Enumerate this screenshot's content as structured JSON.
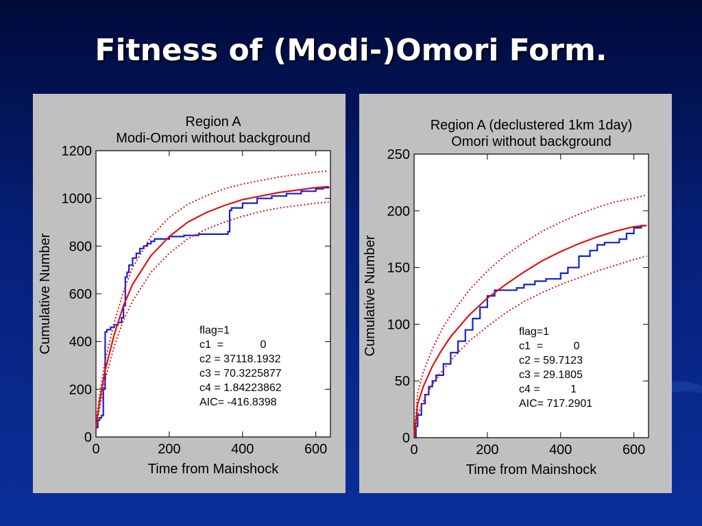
{
  "slide": {
    "title": "Fitness of (Modi-)Omori Form."
  },
  "colors": {
    "observed": "#1020d0",
    "fit": "#e01010",
    "confidence": "#e01010",
    "panel": "#c0c0c0"
  },
  "chart_data": [
    {
      "type": "line",
      "title": "Region A",
      "subtitle": "Modi-Omori without background",
      "xlabel": "Time from Mainshock",
      "ylabel": "Cumulative Number",
      "xlim": [
        0,
        640
      ],
      "ylim": [
        0,
        1200
      ],
      "xticks": [
        "0",
        "200",
        "400",
        "600"
      ],
      "yticks": [
        "0",
        "200",
        "400",
        "600",
        "800",
        "1000",
        "1200"
      ],
      "grid": false,
      "annotation": [
        "flag=1",
        "c1  =            0",
        "c2 = 37118.1932",
        "c3 = 70.3225877",
        "c4 = 1.84223862",
        "AIC= -416.8398"
      ],
      "series": [
        {
          "kind": "observed",
          "style": "step",
          "x": [
            0,
            5,
            10,
            15,
            20,
            25,
            30,
            40,
            50,
            60,
            70,
            75,
            80,
            85,
            90,
            100,
            110,
            120,
            130,
            140,
            150,
            160,
            200,
            240,
            280,
            320,
            360,
            365,
            370,
            400,
            440,
            480,
            520,
            560,
            600,
            620,
            635
          ],
          "y": [
            40,
            70,
            80,
            90,
            200,
            440,
            450,
            460,
            470,
            480,
            500,
            550,
            670,
            690,
            720,
            750,
            770,
            790,
            800,
            810,
            820,
            830,
            840,
            845,
            850,
            850,
            860,
            950,
            960,
            980,
            1000,
            1010,
            1020,
            1030,
            1040,
            1045,
            1050
          ]
        },
        {
          "kind": "fit",
          "x": [
            0,
            10,
            25,
            50,
            75,
            100,
            150,
            200,
            250,
            300,
            350,
            400,
            450,
            500,
            550,
            600,
            635
          ],
          "y": [
            40,
            150,
            280,
            430,
            550,
            640,
            760,
            840,
            900,
            940,
            970,
            995,
            1010,
            1025,
            1035,
            1045,
            1050
          ]
        },
        {
          "kind": "upper-bound",
          "x": [
            0,
            10,
            25,
            50,
            75,
            100,
            150,
            200,
            250,
            300,
            350,
            400,
            450,
            500,
            550,
            600,
            635
          ],
          "y": [
            60,
            175,
            320,
            480,
            610,
            710,
            840,
            920,
            975,
            1010,
            1040,
            1060,
            1075,
            1090,
            1100,
            1110,
            1115
          ]
        },
        {
          "kind": "lower-bound",
          "x": [
            0,
            10,
            25,
            50,
            75,
            100,
            150,
            200,
            250,
            300,
            350,
            400,
            450,
            500,
            550,
            600,
            635
          ],
          "y": [
            20,
            120,
            240,
            380,
            490,
            570,
            690,
            770,
            830,
            870,
            900,
            925,
            945,
            960,
            970,
            980,
            985
          ]
        }
      ]
    },
    {
      "type": "line",
      "title": "Region A (declustered 1km 1day)",
      "subtitle": "Omori without background",
      "xlabel": "Time from Mainshock",
      "ylabel": "Cumulative Number",
      "xlim": [
        0,
        640
      ],
      "ylim": [
        0,
        250
      ],
      "xticks": [
        "0",
        "200",
        "400",
        "600"
      ],
      "yticks": [
        "0",
        "50",
        "100",
        "150",
        "200",
        "250"
      ],
      "grid": false,
      "annotation": [
        "flag=1",
        "c1  =          0",
        "c2 = 59.7123",
        "c3 = 29.1805",
        "c4 =          1",
        "AIC= 717.2901"
      ],
      "series": [
        {
          "kind": "observed",
          "style": "step",
          "x": [
            0,
            5,
            10,
            20,
            30,
            40,
            50,
            60,
            80,
            100,
            120,
            140,
            160,
            180,
            200,
            220,
            250,
            280,
            300,
            330,
            360,
            400,
            420,
            450,
            480,
            500,
            520,
            560,
            580,
            600,
            620,
            635
          ],
          "y": [
            0,
            10,
            20,
            30,
            38,
            45,
            50,
            55,
            65,
            75,
            85,
            95,
            105,
            115,
            125,
            130,
            130,
            132,
            135,
            138,
            140,
            145,
            150,
            160,
            165,
            170,
            172,
            175,
            180,
            185,
            187,
            187
          ]
        },
        {
          "kind": "fit",
          "x": [
            0,
            10,
            25,
            50,
            75,
            100,
            150,
            200,
            250,
            300,
            350,
            400,
            450,
            500,
            550,
            600,
            635
          ],
          "y": [
            0,
            30,
            45,
            63,
            77,
            89,
            108,
            123,
            135,
            146,
            156,
            164,
            171,
            177,
            182,
            186,
            187
          ]
        },
        {
          "kind": "upper-bound",
          "x": [
            0,
            10,
            25,
            50,
            75,
            100,
            150,
            200,
            250,
            300,
            350,
            400,
            450,
            500,
            550,
            600,
            635
          ],
          "y": [
            0,
            40,
            58,
            78,
            95,
            108,
            130,
            147,
            161,
            172,
            182,
            190,
            197,
            203,
            208,
            211,
            214
          ]
        },
        {
          "kind": "lower-bound",
          "x": [
            0,
            10,
            25,
            50,
            75,
            100,
            150,
            200,
            250,
            300,
            350,
            400,
            450,
            500,
            550,
            600,
            635
          ],
          "y": [
            0,
            20,
            32,
            47,
            58,
            68,
            85,
            98,
            110,
            120,
            128,
            135,
            141,
            147,
            152,
            157,
            160
          ]
        }
      ]
    }
  ]
}
